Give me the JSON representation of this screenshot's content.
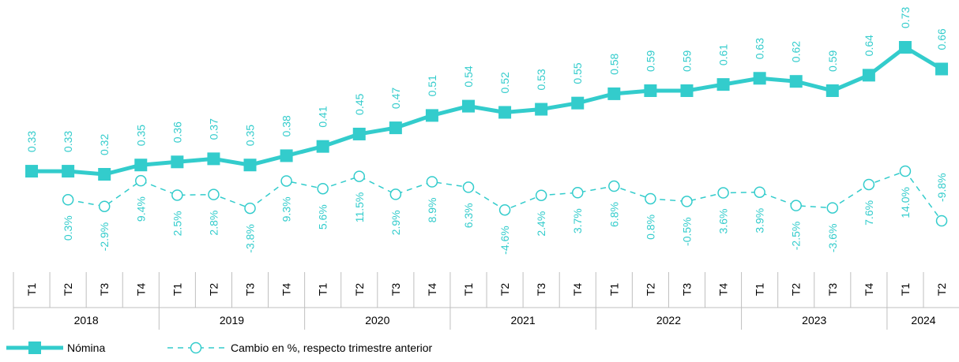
{
  "chart_data": {
    "type": "line",
    "groups": [
      {
        "name": "2018",
        "categories": [
          "T1",
          "T2",
          "T3",
          "T4"
        ]
      },
      {
        "name": "2019",
        "categories": [
          "T1",
          "T2",
          "T3",
          "T4"
        ]
      },
      {
        "name": "2020",
        "categories": [
          "T1",
          "T2",
          "T3",
          "T4"
        ]
      },
      {
        "name": "2021",
        "categories": [
          "T1",
          "T2",
          "T3",
          "T4"
        ]
      },
      {
        "name": "2022",
        "categories": [
          "T1",
          "T2",
          "T3",
          "T4"
        ]
      },
      {
        "name": "2023",
        "categories": [
          "T1",
          "T2",
          "T3",
          "T4"
        ]
      },
      {
        "name": "2024",
        "categories": [
          "T1",
          "T2"
        ]
      }
    ],
    "series": [
      {
        "name": "Nómina",
        "color": "#33cccc",
        "values": [
          0.33,
          0.33,
          0.32,
          0.35,
          0.36,
          0.37,
          0.35,
          0.38,
          0.41,
          0.45,
          0.47,
          0.51,
          0.54,
          0.52,
          0.53,
          0.55,
          0.58,
          0.59,
          0.59,
          0.61,
          0.63,
          0.62,
          0.59,
          0.64,
          0.73,
          0.66
        ]
      },
      {
        "name": "Cambio en %, respecto trimestre anterior",
        "color": "#33cccc",
        "values": [
          null,
          0.3,
          -2.9,
          9.4,
          2.5,
          2.8,
          -3.8,
          9.3,
          5.6,
          11.5,
          2.9,
          8.9,
          6.3,
          -4.6,
          2.4,
          3.7,
          6.8,
          0.8,
          -0.5,
          3.6,
          3.9,
          -2.5,
          -3.6,
          7.6,
          14.0,
          -9.8
        ],
        "value_labels": [
          null,
          "0.3%",
          "-2.9%",
          "9.4%",
          "2.5%",
          "2.8%",
          "-3.8%",
          "9.3%",
          "5.6%",
          "11.5%",
          "2.9%",
          "8.9%",
          "6.3%",
          "-4.6%",
          "2.4%",
          "3.7%",
          "6.8%",
          "0.8%",
          "-0.5%",
          "3.6%",
          "3.9%",
          "-2.5%",
          "-3.6%",
          "7.6%",
          "14.0%",
          "-9.8%"
        ]
      }
    ]
  }
}
